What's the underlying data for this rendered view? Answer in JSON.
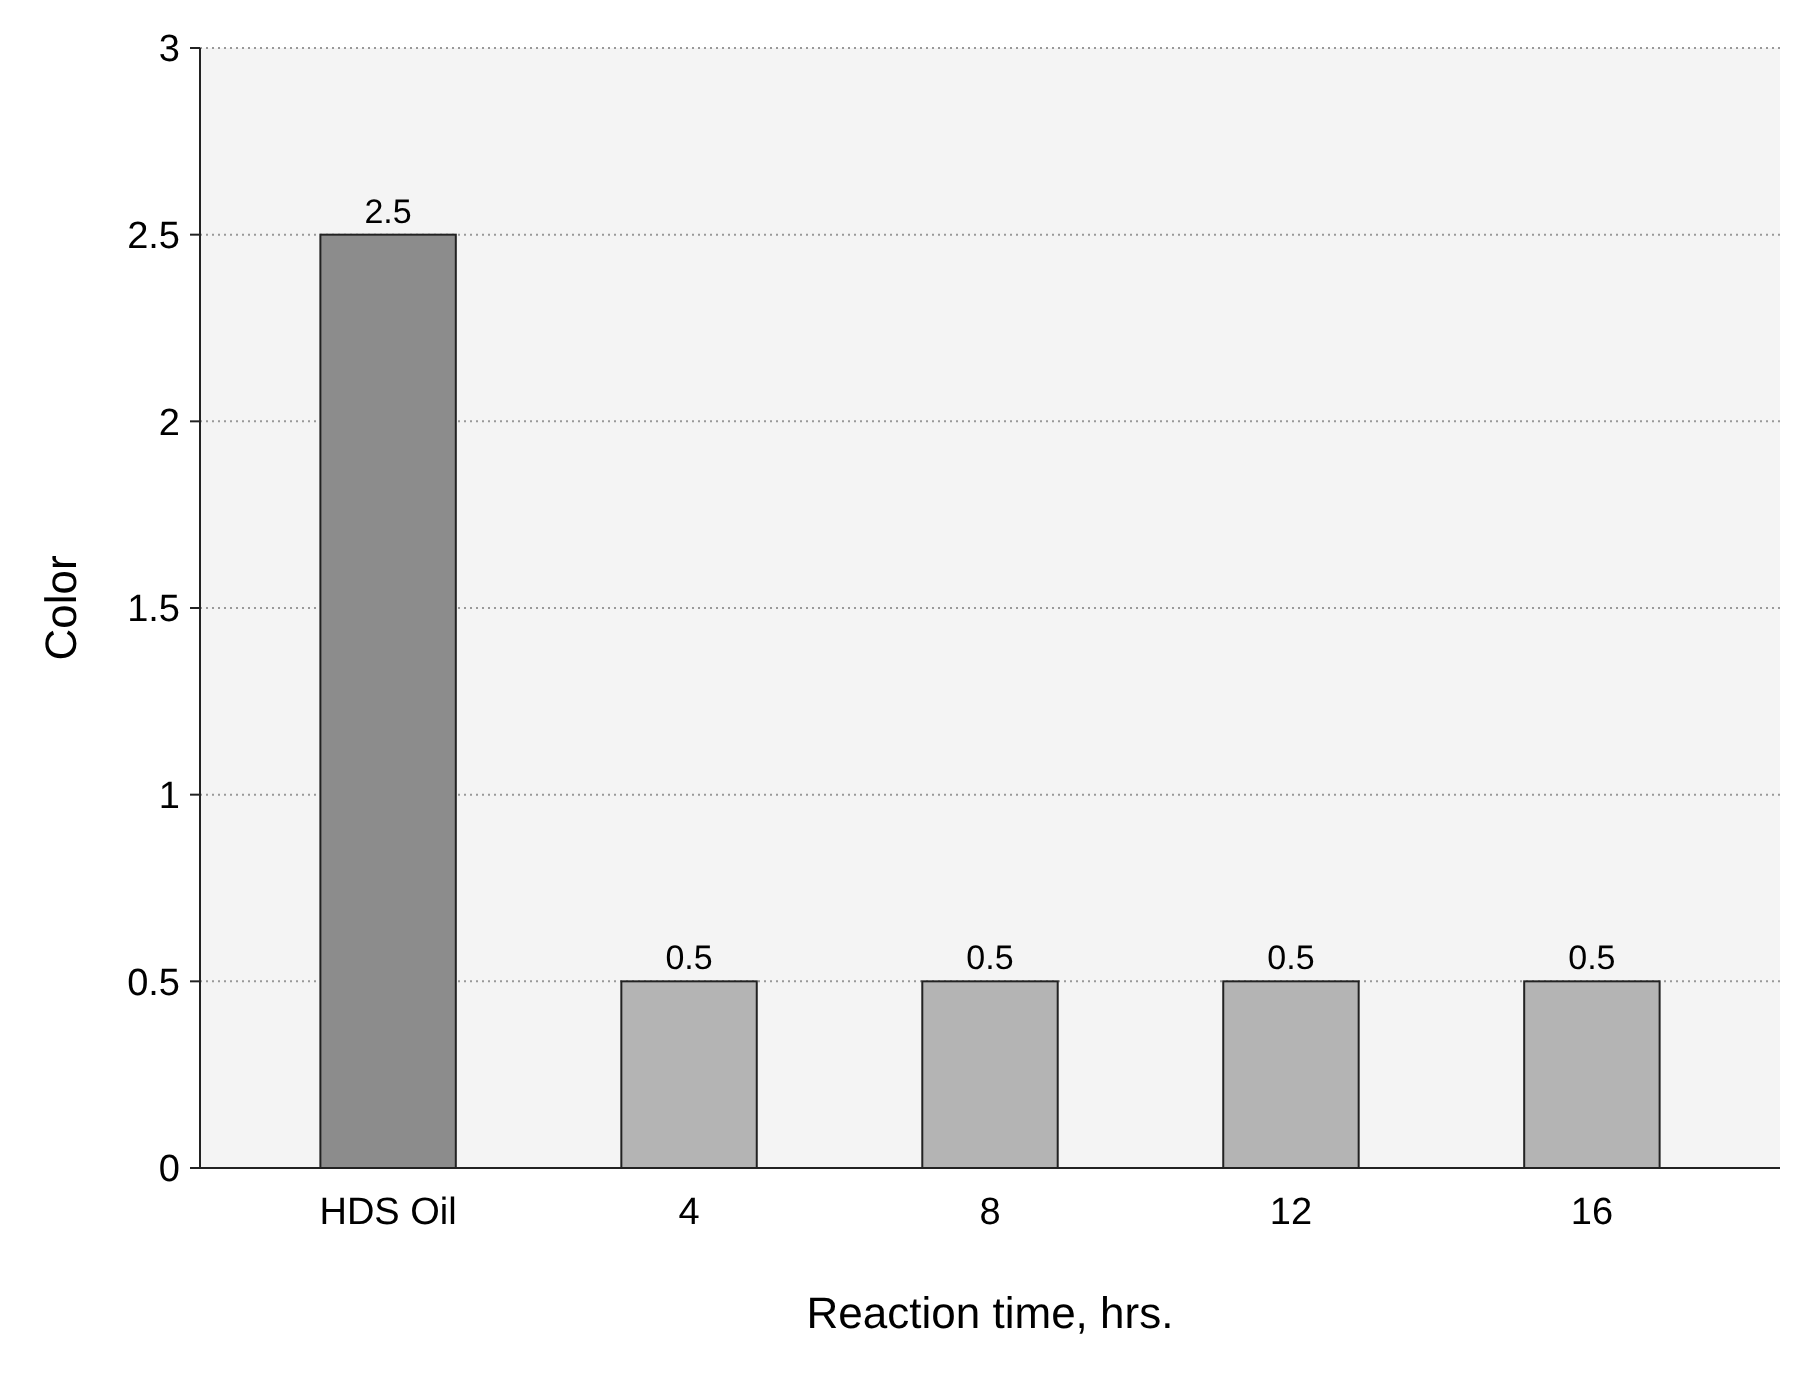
{
  "chart_data": {
    "type": "bar",
    "xlabel": "Reaction time, hrs.",
    "ylabel": "Color",
    "categories": [
      "HDS Oil",
      "4",
      "8",
      "12",
      "16"
    ],
    "values": [
      2.5,
      0.5,
      0.5,
      0.5,
      0.5
    ],
    "colors": [
      "#8c8c8c",
      "#b4b4b4",
      "#b4b4b4",
      "#b4b4b4",
      "#b4b4b4"
    ],
    "ylim": [
      0,
      3
    ],
    "yticks": [
      0,
      0.5,
      1,
      1.5,
      2,
      2.5,
      3
    ],
    "grid": "y",
    "data_labels": true
  }
}
